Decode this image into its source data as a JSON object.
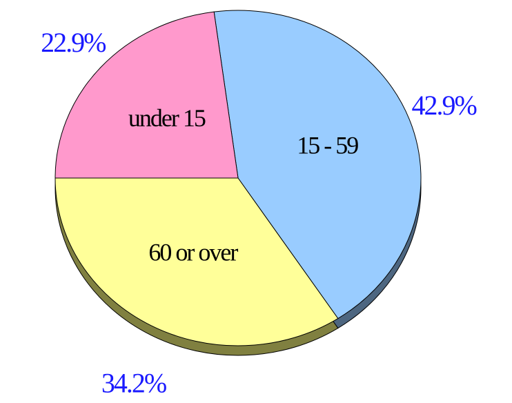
{
  "chart_data": {
    "type": "pie",
    "categories": [
      "15 - 59",
      "60 or over",
      "under 15"
    ],
    "values": [
      42.9,
      34.2,
      22.9
    ],
    "value_labels": [
      "42.9%",
      "34.2%",
      "22.9%"
    ],
    "colors": [
      "#99ccff",
      "#ffff99",
      "#ff99cc"
    ],
    "side_colors": [
      "#4d6680",
      "#808040",
      "#804d66"
    ]
  }
}
